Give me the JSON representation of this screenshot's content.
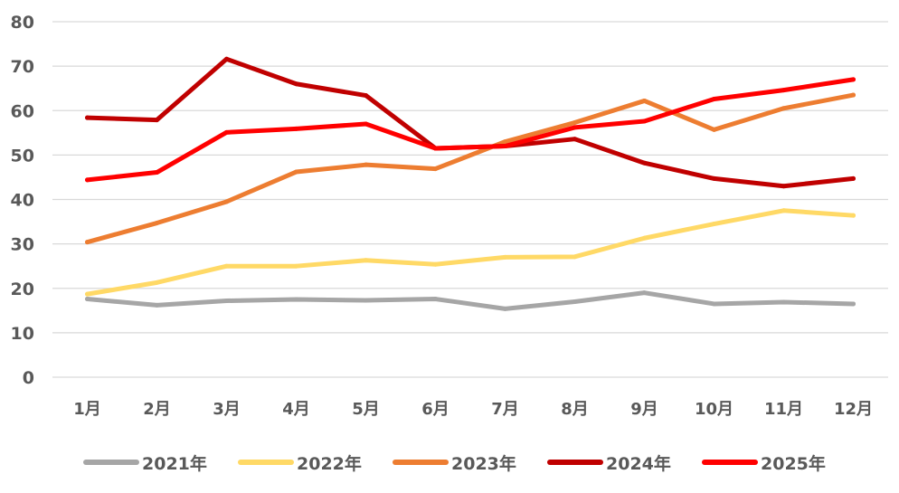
{
  "chart_data": {
    "type": "line",
    "categories": [
      "1月",
      "2月",
      "3月",
      "4月",
      "5月",
      "6月",
      "7月",
      "8月",
      "9月",
      "10月",
      "11月",
      "12月"
    ],
    "ylim": [
      0,
      80
    ],
    "yticks": [
      0,
      10,
      20,
      30,
      40,
      50,
      60,
      70,
      80
    ],
    "grid": true,
    "legend_position": "bottom",
    "series": [
      {
        "name": "2021年",
        "color": "#A6A6A6",
        "values": [
          17.6,
          16.2,
          17.2,
          17.5,
          17.3,
          17.6,
          15.4,
          17.0,
          19.0,
          16.5,
          16.9,
          16.5
        ]
      },
      {
        "name": "2022年",
        "color": "#FFD966",
        "values": [
          18.7,
          21.3,
          25.0,
          25.0,
          26.3,
          25.4,
          27.0,
          27.1,
          31.3,
          34.5,
          37.5,
          36.4
        ]
      },
      {
        "name": "2023年",
        "color": "#ED7D31",
        "values": [
          30.4,
          34.7,
          39.5,
          46.2,
          47.8,
          46.9,
          53.0,
          57.3,
          62.2,
          55.7,
          60.5,
          63.5
        ]
      },
      {
        "name": "2024年",
        "color": "#C00000",
        "values": [
          58.4,
          57.9,
          71.6,
          66.0,
          63.4,
          51.5,
          52.0,
          53.6,
          48.2,
          44.7,
          43.0,
          44.7
        ]
      },
      {
        "name": "2025年",
        "color": "#FF0000",
        "values": [
          44.4,
          46.1,
          55.1,
          55.9,
          57.0,
          51.5,
          52.0,
          56.2,
          57.6,
          62.6,
          64.6,
          67.0
        ]
      }
    ]
  }
}
